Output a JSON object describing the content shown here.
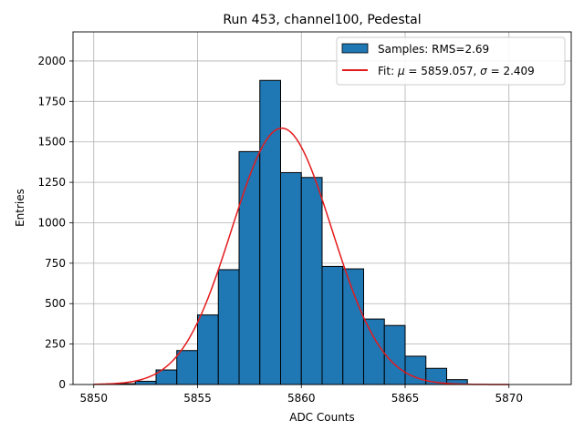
{
  "chart_data": {
    "type": "bar",
    "title": "Run 453, channel100, Pedestal",
    "xlabel": "ADC Counts",
    "ylabel": "Entries",
    "xlim": [
      5849,
      5873
    ],
    "ylim": [
      0,
      2180
    ],
    "xticks": [
      5850,
      5855,
      5860,
      5865,
      5870
    ],
    "yticks": [
      0,
      250,
      500,
      750,
      1000,
      1250,
      1500,
      1750,
      2000
    ],
    "grid": true,
    "legend_position": "top-right",
    "colors": {
      "bars": "#1f77b4",
      "bar_edge": "#000000",
      "fit": "#e41a1c",
      "grid": "#b0b0b0"
    },
    "histogram": {
      "name": "Samples: RMS=2.69",
      "bin_edges": [
        5850,
        5851,
        5852,
        5853,
        5854,
        5855,
        5856,
        5857,
        5858,
        5859,
        5860,
        5861,
        5862,
        5863,
        5864,
        5865,
        5866,
        5867,
        5868,
        5869,
        5870,
        5871,
        5872
      ],
      "counts": [
        0,
        5,
        20,
        90,
        210,
        430,
        710,
        1440,
        1880,
        1310,
        1280,
        730,
        715,
        405,
        365,
        175,
        100,
        30,
        0,
        0,
        0,
        0
      ]
    },
    "fit": {
      "label": "Fit: μ = 5859.057, σ = 2.409",
      "label_parts": {
        "prefix": "Fit: ",
        "mu": "μ",
        "mid": " = 5859.057, ",
        "sigma": "σ",
        "suffix": " = 2.409"
      },
      "mu": 5859.057,
      "sigma": 2.409,
      "amplitude": 1585,
      "x_range": [
        5850,
        5870
      ]
    }
  }
}
